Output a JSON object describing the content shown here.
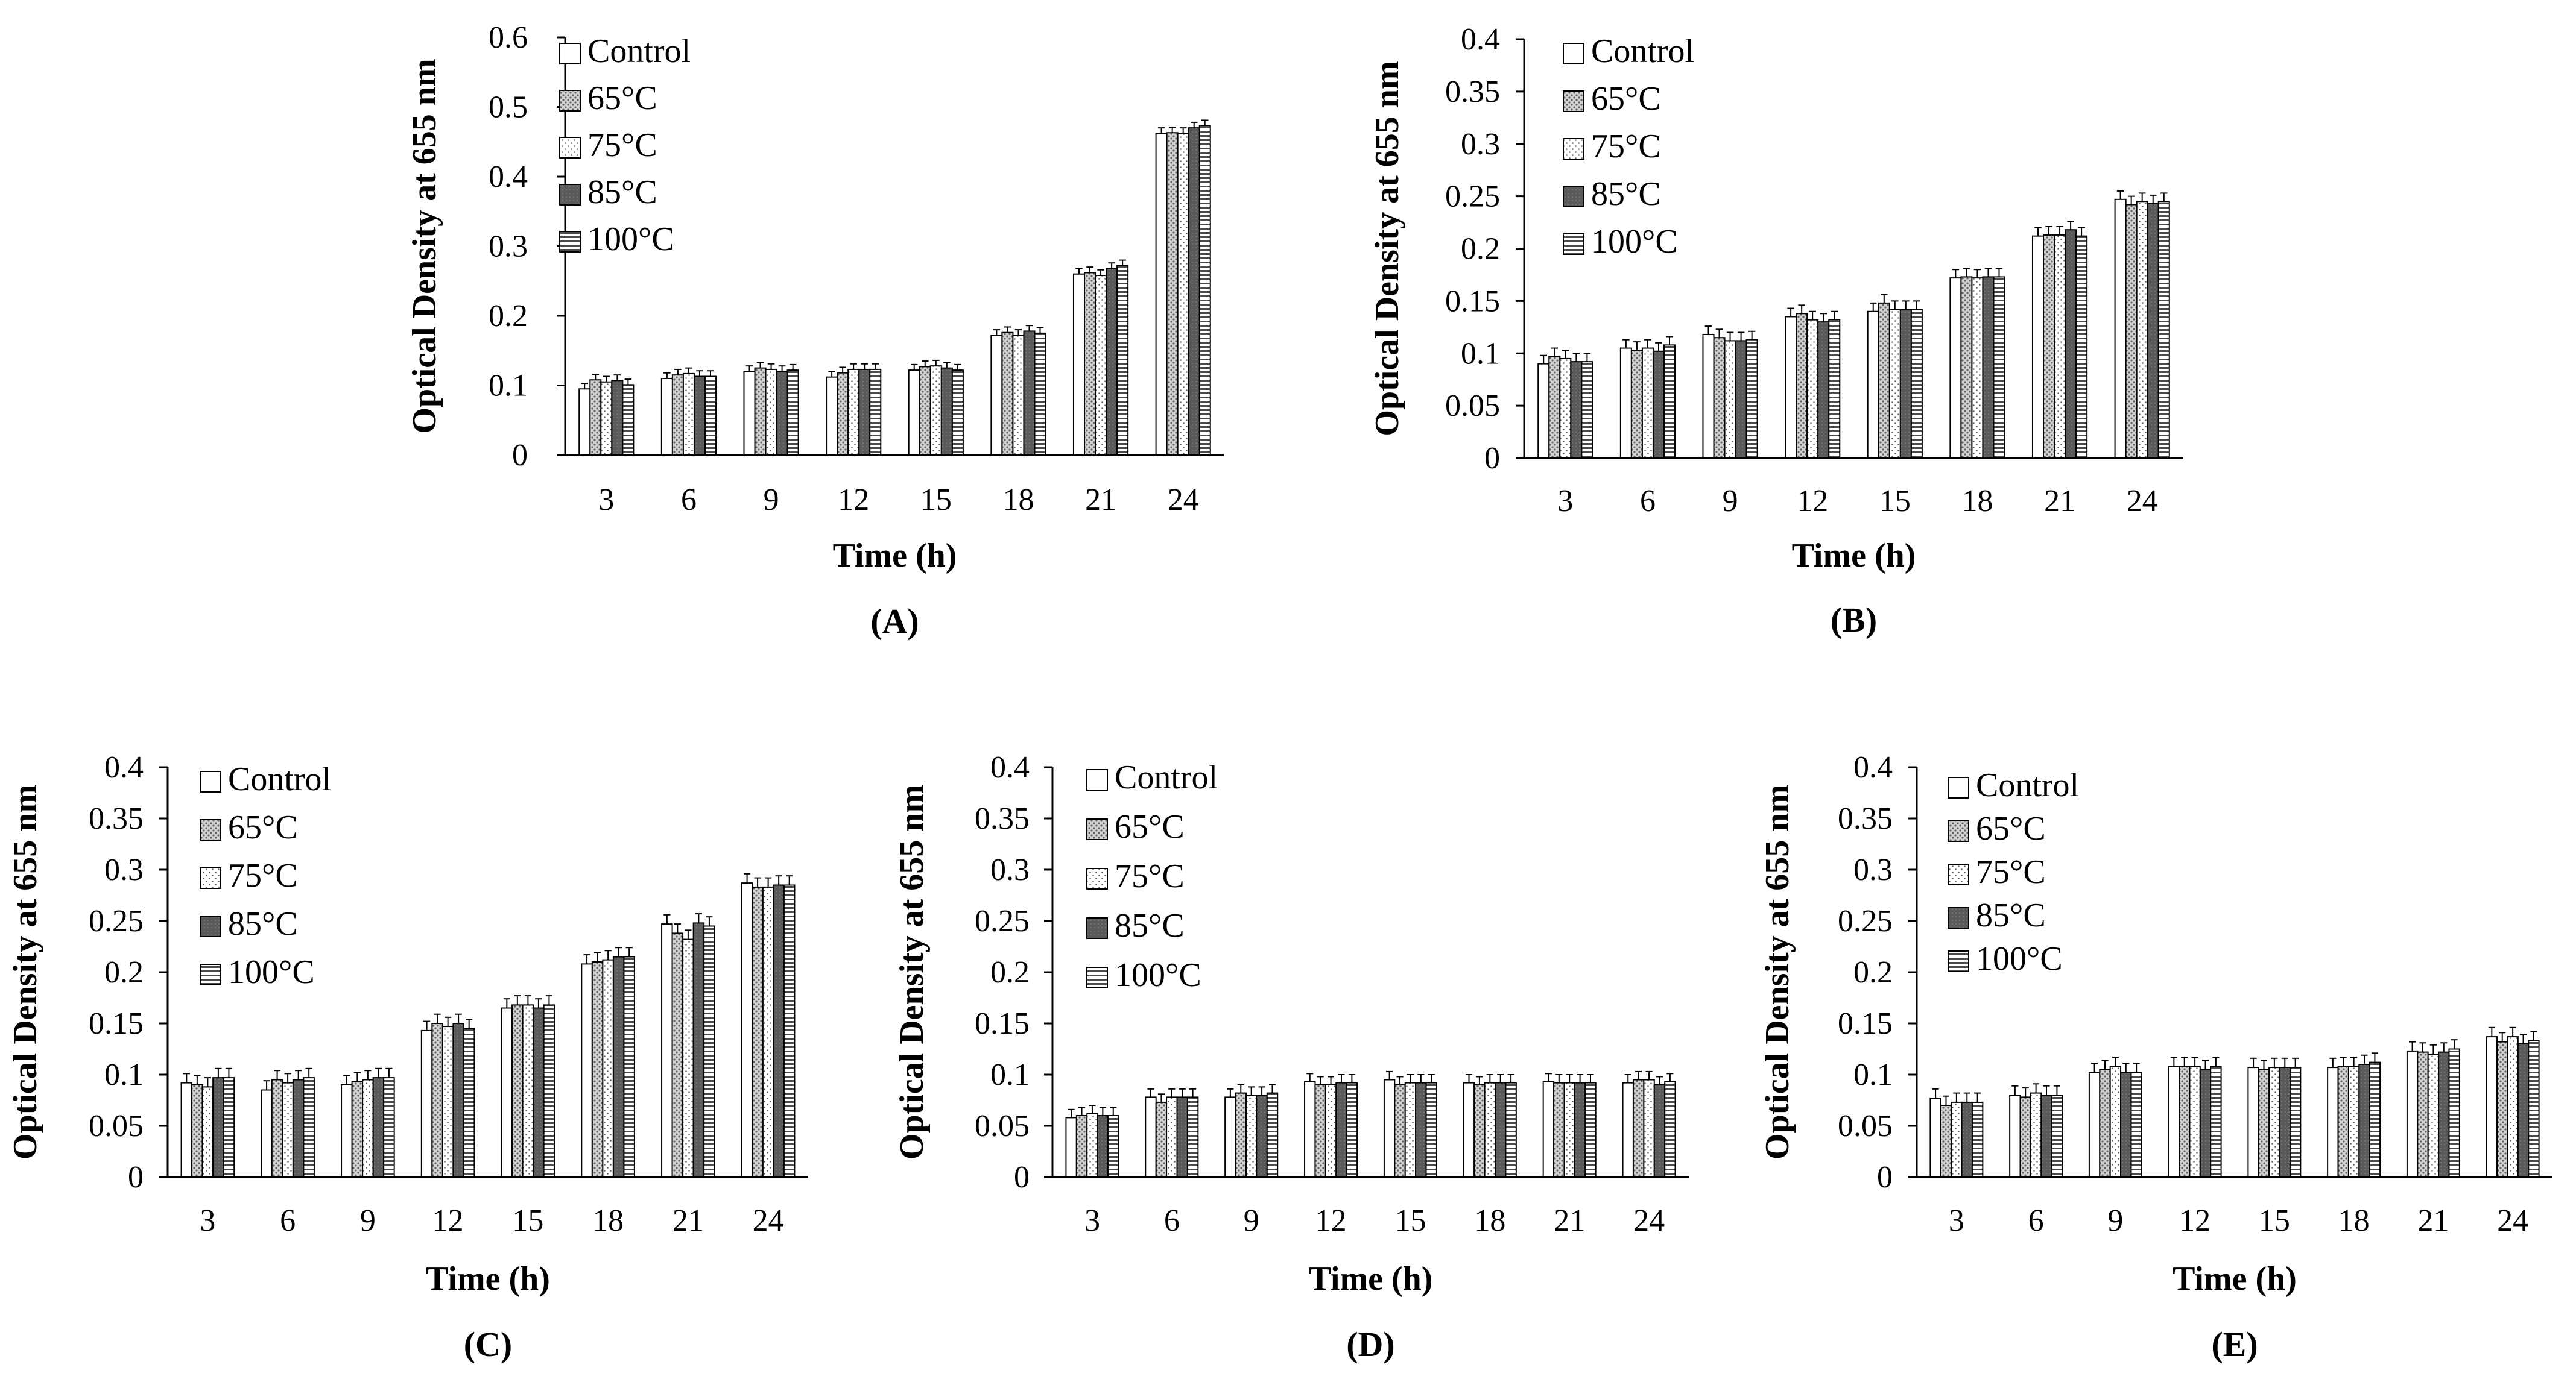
{
  "figure": {
    "legend_colors": {
      "Control": "#ffffff",
      "65°C": "#c8c8c8",
      "75°C": "#f4f4f4",
      "85°C": "#606060",
      "100°C": "#dadada"
    }
  },
  "chart_data": [
    {
      "type": "bar",
      "panel_label": "(A)",
      "xlabel": "Time (h)",
      "ylabel": "Optical Density at 655 nm",
      "ylim": [
        0,
        0.6
      ],
      "yticks": [
        "0",
        "0.1",
        "0.2",
        "0.3",
        "0.4",
        "0.5",
        "0.6"
      ],
      "categories": [
        "3",
        "6",
        "9",
        "12",
        "15",
        "18",
        "21",
        "24"
      ],
      "legend": [
        "Control",
        "65°C",
        "75°C",
        "85°C",
        "100°C"
      ],
      "series": [
        {
          "name": "Control",
          "values": [
            0.095,
            0.11,
            0.12,
            0.112,
            0.122,
            0.172,
            0.26,
            0.462
          ]
        },
        {
          "name": "65°C",
          "values": [
            0.108,
            0.115,
            0.125,
            0.118,
            0.127,
            0.176,
            0.262,
            0.463
          ]
        },
        {
          "name": "75°C",
          "values": [
            0.105,
            0.117,
            0.123,
            0.123,
            0.128,
            0.172,
            0.258,
            0.462
          ]
        },
        {
          "name": "85°C",
          "values": [
            0.107,
            0.113,
            0.12,
            0.123,
            0.125,
            0.178,
            0.268,
            0.47
          ]
        },
        {
          "name": "100°C",
          "values": [
            0.101,
            0.113,
            0.122,
            0.123,
            0.122,
            0.175,
            0.272,
            0.473
          ]
        }
      ],
      "error": 0.008
    },
    {
      "type": "bar",
      "panel_label": "(B)",
      "xlabel": "Time (h)",
      "ylabel": "Optical Density at 655 nm",
      "ylim": [
        0,
        0.4
      ],
      "yticks": [
        "0",
        "0.05",
        "0.1",
        "0.15",
        "0.2",
        "0.25",
        "0.3",
        "0.35",
        "0.4"
      ],
      "categories": [
        "3",
        "6",
        "9",
        "12",
        "15",
        "18",
        "21",
        "24"
      ],
      "legend": [
        "Control",
        "65°C",
        "75°C",
        "85°C",
        "100°C"
      ],
      "series": [
        {
          "name": "Control",
          "values": [
            0.09,
            0.105,
            0.118,
            0.135,
            0.14,
            0.172,
            0.212,
            0.247
          ]
        },
        {
          "name": "65°C",
          "values": [
            0.097,
            0.103,
            0.115,
            0.138,
            0.148,
            0.173,
            0.213,
            0.242
          ]
        },
        {
          "name": "75°C",
          "values": [
            0.095,
            0.105,
            0.112,
            0.132,
            0.142,
            0.172,
            0.213,
            0.245
          ]
        },
        {
          "name": "85°C",
          "values": [
            0.092,
            0.102,
            0.112,
            0.13,
            0.142,
            0.173,
            0.218,
            0.243
          ]
        },
        {
          "name": "100°C",
          "values": [
            0.092,
            0.108,
            0.113,
            0.132,
            0.142,
            0.173,
            0.212,
            0.245
          ]
        }
      ],
      "error": 0.008
    },
    {
      "type": "bar",
      "panel_label": "(C)",
      "xlabel": "Time (h)",
      "ylabel": "Optical Density at 655 nm",
      "ylim": [
        0,
        0.4
      ],
      "yticks": [
        "0",
        "0.05",
        "0.1",
        "0.15",
        "0.2",
        "0.25",
        "0.3",
        "0.35",
        "0.4"
      ],
      "categories": [
        "3",
        "6",
        "9",
        "12",
        "15",
        "18",
        "21",
        "24"
      ],
      "legend": [
        "Control",
        "65°C",
        "75°C",
        "85°C",
        "100°C"
      ],
      "series": [
        {
          "name": "Control",
          "values": [
            0.092,
            0.085,
            0.09,
            0.143,
            0.165,
            0.208,
            0.247,
            0.287
          ]
        },
        {
          "name": "65°C",
          "values": [
            0.09,
            0.095,
            0.093,
            0.15,
            0.168,
            0.21,
            0.238,
            0.283
          ]
        },
        {
          "name": "75°C",
          "values": [
            0.088,
            0.092,
            0.095,
            0.147,
            0.168,
            0.212,
            0.232,
            0.283
          ]
        },
        {
          "name": "85°C",
          "values": [
            0.097,
            0.095,
            0.097,
            0.15,
            0.165,
            0.215,
            0.248,
            0.285
          ]
        },
        {
          "name": "100°C",
          "values": [
            0.097,
            0.097,
            0.097,
            0.145,
            0.168,
            0.215,
            0.245,
            0.285
          ]
        }
      ],
      "error": 0.009
    },
    {
      "type": "bar",
      "panel_label": "(D)",
      "xlabel": "Time (h)",
      "ylabel": "Optical Density at 655 nm",
      "ylim": [
        0,
        0.4
      ],
      "yticks": [
        "0",
        "0.05",
        "0.1",
        "0.15",
        "0.2",
        "0.25",
        "0.3",
        "0.35",
        "0.4"
      ],
      "categories": [
        "3",
        "6",
        "9",
        "12",
        "15",
        "18",
        "21",
        "24"
      ],
      "legend": [
        "Control",
        "65°C",
        "75°C",
        "85°C",
        "100°C"
      ],
      "series": [
        {
          "name": "Control",
          "values": [
            0.058,
            0.078,
            0.078,
            0.093,
            0.095,
            0.092,
            0.093,
            0.092
          ]
        },
        {
          "name": "65°C",
          "values": [
            0.06,
            0.073,
            0.082,
            0.09,
            0.09,
            0.09,
            0.092,
            0.095
          ]
        },
        {
          "name": "75°C",
          "values": [
            0.062,
            0.078,
            0.08,
            0.09,
            0.092,
            0.092,
            0.092,
            0.095
          ]
        },
        {
          "name": "85°C",
          "values": [
            0.06,
            0.078,
            0.08,
            0.092,
            0.092,
            0.092,
            0.092,
            0.09
          ]
        },
        {
          "name": "100°C",
          "values": [
            0.06,
            0.078,
            0.082,
            0.092,
            0.092,
            0.092,
            0.092,
            0.093
          ]
        }
      ],
      "error": 0.008
    },
    {
      "type": "bar",
      "panel_label": "(E)",
      "xlabel": "Time (h)",
      "ylabel": "Optical Density at 655 nm",
      "ylim": [
        0,
        0.4
      ],
      "yticks": [
        "0",
        "0.05",
        "0.1",
        "0.15",
        "0.2",
        "0.25",
        "0.3",
        "0.35",
        "0.4"
      ],
      "categories": [
        "3",
        "6",
        "9",
        "12",
        "15",
        "18",
        "21",
        "24"
      ],
      "legend": [
        "Control",
        "65°C",
        "75°C",
        "85°C",
        "100°C"
      ],
      "series": [
        {
          "name": "Control",
          "values": [
            0.077,
            0.08,
            0.102,
            0.108,
            0.107,
            0.107,
            0.123,
            0.137
          ]
        },
        {
          "name": "65°C",
          "values": [
            0.07,
            0.078,
            0.105,
            0.108,
            0.105,
            0.108,
            0.122,
            0.132
          ]
        },
        {
          "name": "75°C",
          "values": [
            0.073,
            0.082,
            0.108,
            0.108,
            0.107,
            0.108,
            0.12,
            0.137
          ]
        },
        {
          "name": "85°C",
          "values": [
            0.073,
            0.08,
            0.102,
            0.105,
            0.107,
            0.11,
            0.122,
            0.13
          ]
        },
        {
          "name": "100°C",
          "values": [
            0.073,
            0.08,
            0.102,
            0.108,
            0.107,
            0.112,
            0.125,
            0.133
          ]
        }
      ],
      "error": 0.009
    }
  ]
}
